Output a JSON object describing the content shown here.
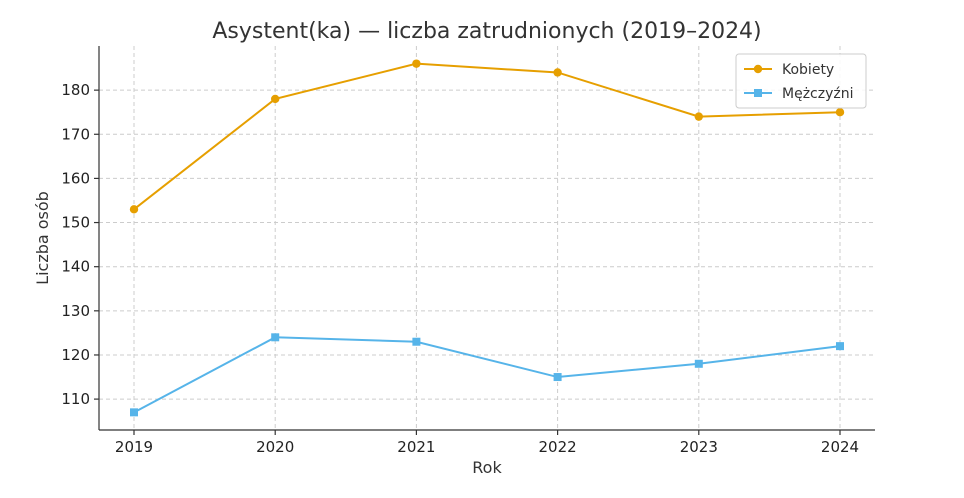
{
  "chart_data": {
    "type": "line",
    "title": "Asystent(ka) — liczba zatrudnionych (2019–2024)",
    "xlabel": "Rok",
    "ylabel": "Liczba osób",
    "x": [
      2019,
      2020,
      2021,
      2022,
      2023,
      2024
    ],
    "ylim": [
      103,
      190
    ],
    "yticks": [
      110,
      120,
      130,
      140,
      150,
      160,
      170,
      180
    ],
    "grid": true,
    "legend_position": "top-right",
    "series": [
      {
        "name": "Kobiety",
        "values": [
          153,
          178,
          186,
          184,
          174,
          175
        ],
        "color": "#E69F00",
        "marker": "circle"
      },
      {
        "name": "Mężczyźni",
        "values": [
          107,
          124,
          123,
          115,
          118,
          122
        ],
        "color": "#56B4E9",
        "marker": "square"
      }
    ]
  }
}
